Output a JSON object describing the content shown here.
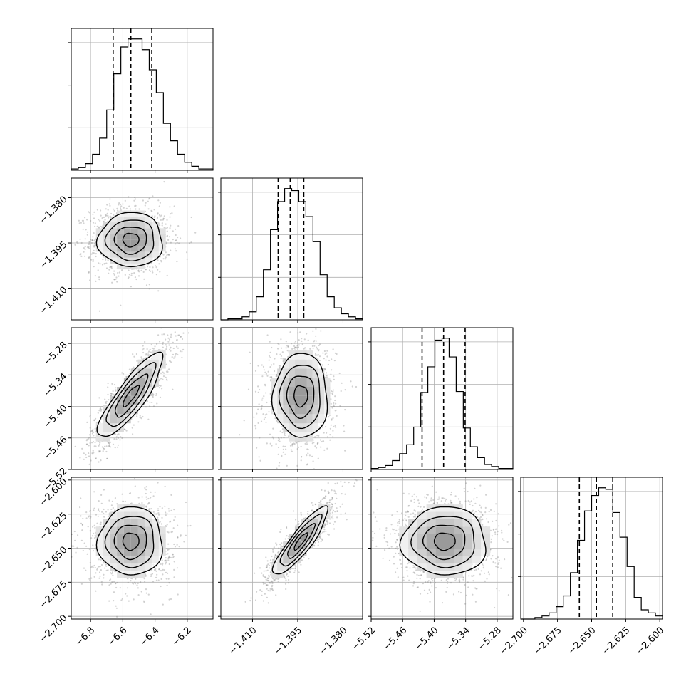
{
  "chart_data": {
    "type": "corner",
    "grid": true,
    "colors": {
      "line": "#000000",
      "points": "#7f7f7f",
      "grid": "#b0b0b0"
    },
    "parameters": [
      {
        "index": 0,
        "range": [
          -6.92,
          -6.04
        ],
        "ticks": [
          -6.8,
          -6.6,
          -6.4,
          -6.2
        ],
        "tick_labels": [
          "−6.8",
          "−6.6",
          "−6.4",
          "−6.2"
        ]
      },
      {
        "index": 1,
        "range": [
          -1.4205,
          -1.3735
        ],
        "ticks": [
          -1.41,
          -1.395,
          -1.38
        ],
        "tick_labels": [
          "−1.410",
          "−1.395",
          "−1.380"
        ]
      },
      {
        "index": 2,
        "range": [
          -5.52,
          -5.25
        ],
        "ticks": [
          -5.52,
          -5.46,
          -5.4,
          -5.34,
          -5.28
        ],
        "tick_labels": [
          "−5.52",
          "−5.46",
          "−5.40",
          "−5.34",
          "−5.28"
        ]
      },
      {
        "index": 3,
        "range": [
          -2.702,
          -2.598
        ],
        "ticks": [
          -2.7,
          -2.675,
          -2.65,
          -2.625,
          -2.6
        ],
        "tick_labels": [
          "−2.700",
          "−2.675",
          "−2.650",
          "−2.625",
          "−2.600"
        ]
      }
    ],
    "histograms": [
      {
        "param": 0,
        "quantiles": [
          -6.66,
          -6.55,
          -6.42
        ],
        "counts": [
          1,
          2,
          5,
          12,
          24,
          45,
          72,
          92,
          98,
          98,
          90,
          75,
          58,
          35,
          22,
          12,
          6,
          3,
          1,
          1
        ]
      },
      {
        "param": 1,
        "quantiles": [
          -1.4015,
          -1.3975,
          -1.393
        ],
        "counts": [
          0,
          1,
          1,
          3,
          8,
          23,
          50,
          90,
          118,
          131,
          129,
          118,
          103,
          78,
          45,
          23,
          12,
          6,
          3,
          1
        ]
      },
      {
        "param": 2,
        "quantiles": [
          -5.423,
          -5.382,
          -5.341
        ],
        "counts": [
          1,
          2,
          4,
          9,
          16,
          25,
          43,
          78,
          104,
          131,
          133,
          114,
          79,
          42,
          23,
          12,
          5,
          3,
          1,
          1
        ]
      },
      {
        "param": 3,
        "quantiles": [
          -2.659,
          -2.6465,
          -2.6345
        ],
        "counts": [
          0,
          0,
          1,
          2,
          4,
          8,
          15,
          30,
          51,
          70,
          80,
          85,
          84,
          69,
          53,
          34,
          14,
          6,
          4,
          2
        ]
      }
    ],
    "pairs": [
      {
        "x_param": 0,
        "y_param": 1,
        "mean": [
          -6.55,
          -1.394
        ],
        "sd": [
          0.1,
          0.0045
        ],
        "corr": 0.0
      },
      {
        "x_param": 0,
        "y_param": 2,
        "mean": [
          -6.55,
          -5.38
        ],
        "sd": [
          0.1,
          0.04
        ],
        "corr": 0.85
      },
      {
        "x_param": 1,
        "y_param": 2,
        "mean": [
          -1.394,
          -5.38
        ],
        "sd": [
          0.0045,
          0.04
        ],
        "corr": 0.0
      },
      {
        "x_param": 0,
        "y_param": 3,
        "mean": [
          -6.55,
          -2.645
        ],
        "sd": [
          0.1,
          0.0125
        ],
        "corr": 0.0
      },
      {
        "x_param": 1,
        "y_param": 3,
        "mean": [
          -1.394,
          -2.645
        ],
        "sd": [
          0.0045,
          0.0125
        ],
        "corr": 0.88
      },
      {
        "x_param": 2,
        "y_param": 3,
        "mean": [
          -5.38,
          -2.645
        ],
        "sd": [
          0.04,
          0.0125
        ],
        "corr": 0.0
      }
    ],
    "contour_levels_sigma": [
      0.5,
      1.0,
      1.5,
      2.0
    ]
  }
}
